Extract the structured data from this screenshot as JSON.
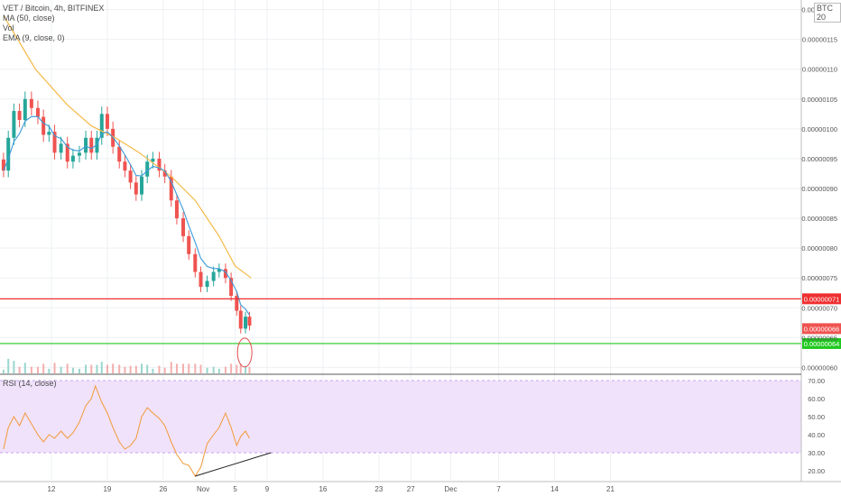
{
  "header": {
    "symbol_line": "VET / Bitcoin, 4h, BITFINEX",
    "indicators": [
      "MA (50, close)",
      "Vol",
      "EMA (9, close, 0)"
    ],
    "currency_badge": "BTC",
    "currency_number": "20"
  },
  "rsi_label": "RSI (14, close)",
  "chart_data": [
    {
      "type": "candlestick",
      "title": "VET / Bitcoin, 4h, BITFINEX",
      "ylim": [
        5.9e-07,
        1.21e-06
      ],
      "price_ticks": [
        "0.00000060",
        "0.00000065",
        "0.00000070",
        "0.00000075",
        "0.00000080",
        "0.00000085",
        "0.00000090",
        "0.00000095",
        "0.00000100",
        "0.00000105",
        "0.00000110",
        "0.00000115",
        "0.00000120"
      ],
      "x_ticks": [
        "12",
        "19",
        "26",
        "Nov",
        "5",
        "9",
        "16",
        "23",
        "27",
        "Dec",
        "7",
        "14",
        "21"
      ],
      "close_series": [
        {
          "day": 6.0,
          "close": 9.3e-07
        },
        {
          "day": 6.6,
          "close": 9.85e-07
        },
        {
          "day": 7.3,
          "close": 1.03e-06
        },
        {
          "day": 8.0,
          "close": 1.015e-06
        },
        {
          "day": 8.7,
          "close": 1.05e-06
        },
        {
          "day": 9.5,
          "close": 1.035e-06
        },
        {
          "day": 10.3,
          "close": 1.02e-06
        },
        {
          "day": 11.0,
          "close": 9.9e-07
        },
        {
          "day": 11.7,
          "close": 9.95e-07
        },
        {
          "day": 12.4,
          "close": 9.6e-07
        },
        {
          "day": 13.2,
          "close": 9.75e-07
        },
        {
          "day": 14.0,
          "close": 9.45e-07
        },
        {
          "day": 14.7,
          "close": 9.55e-07
        },
        {
          "day": 15.5,
          "close": 9.6e-07
        },
        {
          "day": 16.3,
          "close": 9.85e-07
        },
        {
          "day": 17.0,
          "close": 9.6e-07
        },
        {
          "day": 17.7,
          "close": 9.85e-07
        },
        {
          "day": 18.3,
          "close": 1.025e-06
        },
        {
          "day": 19.0,
          "close": 1e-06
        },
        {
          "day": 19.7,
          "close": 9.7e-07
        },
        {
          "day": 20.5,
          "close": 9.45e-07
        },
        {
          "day": 21.2,
          "close": 9.3e-07
        },
        {
          "day": 21.9,
          "close": 9.1e-07
        },
        {
          "day": 22.6,
          "close": 8.9e-07
        },
        {
          "day": 23.3,
          "close": 9.2e-07
        },
        {
          "day": 24.0,
          "close": 9.45e-07
        },
        {
          "day": 24.7,
          "close": 9.5e-07
        },
        {
          "day": 25.5,
          "close": 9.3e-07
        },
        {
          "day": 26.2,
          "close": 9.2e-07
        },
        {
          "day": 27.0,
          "close": 8.8e-07
        },
        {
          "day": 27.7,
          "close": 8.5e-07
        },
        {
          "day": 28.5,
          "close": 8.2e-07
        },
        {
          "day": 29.2,
          "close": 7.9e-07
        },
        {
          "day": 30.0,
          "close": 7.6e-07
        },
        {
          "day": 30.7,
          "close": 7.35e-07
        },
        {
          "day": 31.5,
          "close": 7.45e-07
        },
        {
          "day": 32.3,
          "close": 7.6e-07
        },
        {
          "day": 33.0,
          "close": 7.65e-07
        },
        {
          "day": 33.8,
          "close": 7.5e-07
        },
        {
          "day": 34.5,
          "close": 7.2e-07
        },
        {
          "day": 35.2,
          "close": 6.95e-07
        },
        {
          "day": 35.7,
          "close": 6.65e-07
        },
        {
          "day": 36.3,
          "close": 6.85e-07
        },
        {
          "day": 36.8,
          "close": 6.7e-07
        }
      ],
      "ma50": [
        {
          "day": 6.0,
          "value": 1.19e-06
        },
        {
          "day": 10.0,
          "value": 1.1e-06
        },
        {
          "day": 14.0,
          "value": 1.04e-06
        },
        {
          "day": 17.0,
          "value": 1.005e-06
        },
        {
          "day": 20.0,
          "value": 9.85e-07
        },
        {
          "day": 23.0,
          "value": 9.6e-07
        },
        {
          "day": 27.0,
          "value": 9.2e-07
        },
        {
          "day": 30.0,
          "value": 8.8e-07
        },
        {
          "day": 33.0,
          "value": 8.2e-07
        },
        {
          "day": 35.0,
          "value": 7.7e-07
        },
        {
          "day": 37.0,
          "value": 7.5e-07
        }
      ],
      "horizontal_levels": [
        {
          "value": 7.15e-07,
          "color": "#ef2f2f",
          "label": "0.00000071"
        },
        {
          "value": 6.4e-07,
          "color": "#1fc91f",
          "label": "0.00000064"
        }
      ],
      "last_price_label": "0.00000066",
      "last_price_value": 6.65e-07,
      "colors": {
        "up": "#26a69a",
        "down": "#ef5350",
        "ma": "#f5b947",
        "ema": "#3a9ad9"
      }
    },
    {
      "type": "line",
      "title": "RSI (14, close)",
      "ylim": [
        15,
        72
      ],
      "ticks": [
        "20.00",
        "30.00",
        "40.00",
        "50.00",
        "60.00",
        "70.00"
      ],
      "band": [
        30,
        70
      ],
      "series": [
        {
          "values": [
            {
              "day": 6.0,
              "v": 32
            },
            {
              "day": 6.6,
              "v": 44
            },
            {
              "day": 7.3,
              "v": 50
            },
            {
              "day": 8.0,
              "v": 45
            },
            {
              "day": 8.7,
              "v": 52
            },
            {
              "day": 9.5,
              "v": 46
            },
            {
              "day": 10.3,
              "v": 40
            },
            {
              "day": 11.0,
              "v": 36
            },
            {
              "day": 11.7,
              "v": 40
            },
            {
              "day": 12.4,
              "v": 38
            },
            {
              "day": 13.2,
              "v": 42
            },
            {
              "day": 14.0,
              "v": 38
            },
            {
              "day": 14.7,
              "v": 41
            },
            {
              "day": 15.5,
              "v": 47
            },
            {
              "day": 16.3,
              "v": 56
            },
            {
              "day": 17.0,
              "v": 60
            },
            {
              "day": 17.5,
              "v": 67
            },
            {
              "day": 18.3,
              "v": 58
            },
            {
              "day": 19.0,
              "v": 52
            },
            {
              "day": 19.7,
              "v": 44
            },
            {
              "day": 20.5,
              "v": 36
            },
            {
              "day": 21.2,
              "v": 32
            },
            {
              "day": 21.9,
              "v": 34
            },
            {
              "day": 22.6,
              "v": 38
            },
            {
              "day": 23.3,
              "v": 50
            },
            {
              "day": 24.0,
              "v": 55
            },
            {
              "day": 24.7,
              "v": 52
            },
            {
              "day": 25.5,
              "v": 49
            },
            {
              "day": 26.2,
              "v": 45
            },
            {
              "day": 27.0,
              "v": 36
            },
            {
              "day": 27.7,
              "v": 29
            },
            {
              "day": 28.5,
              "v": 24
            },
            {
              "day": 29.2,
              "v": 23
            },
            {
              "day": 30.0,
              "v": 17
            },
            {
              "day": 30.7,
              "v": 22
            },
            {
              "day": 31.5,
              "v": 35
            },
            {
              "day": 32.3,
              "v": 40
            },
            {
              "day": 33.0,
              "v": 44
            },
            {
              "day": 33.8,
              "v": 52
            },
            {
              "day": 34.5,
              "v": 44
            },
            {
              "day": 35.2,
              "v": 34
            },
            {
              "day": 35.7,
              "v": 39
            },
            {
              "day": 36.3,
              "v": 42
            },
            {
              "day": 36.8,
              "v": 38
            }
          ],
          "color": "#f29a38"
        }
      ],
      "trendline": [
        {
          "day": 30.0,
          "v": 17
        },
        {
          "day": 39.5,
          "v": 30
        }
      ],
      "colors": {
        "band_fill": "#f0e2fb",
        "band_border": "#c9a3ef"
      }
    }
  ]
}
